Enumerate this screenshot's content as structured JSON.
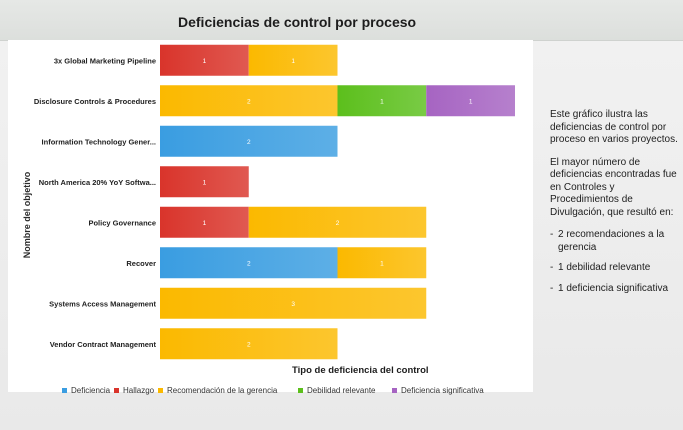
{
  "chart_data": {
    "type": "bar",
    "orientation": "horizontal",
    "stacked": true,
    "title": "Deficiencias de control por proceso",
    "xlabel": "Tipo de deficiencia del control",
    "ylabel": "Nombre del objetivo",
    "categories": [
      "3x Global Marketing Pipeline",
      "Disclosure Controls & Procedures",
      "Information Technology Gener...",
      "North America 20% YoY Softwa...",
      "Policy Governance",
      "Recover",
      "Systems Access Management",
      "Vendor Contract Management"
    ],
    "series": [
      {
        "name": "Deficiencia",
        "color": "#3a9de1",
        "values": [
          0,
          0,
          2,
          0,
          0,
          2,
          0,
          0
        ]
      },
      {
        "name": "Hallazgo",
        "color": "#d9342b",
        "values": [
          1,
          0,
          0,
          1,
          1,
          0,
          0,
          0
        ]
      },
      {
        "name": "Recomendación de la gerencia",
        "color": "#fbb900",
        "values": [
          1,
          2,
          0,
          0,
          2,
          1,
          3,
          2
        ]
      },
      {
        "name": "Debilidad relevante",
        "color": "#5cbf1c",
        "values": [
          0,
          1,
          0,
          0,
          0,
          0,
          0,
          0
        ]
      },
      {
        "name": "Deficiencia significativa",
        "color": "#a664c2",
        "values": [
          0,
          1,
          0,
          0,
          0,
          0,
          0,
          0
        ]
      }
    ],
    "xlim": [
      0,
      4
    ],
    "grid": false,
    "legend_position": "bottom"
  },
  "side_note": {
    "intro": "Este gráfico ilustra las deficiencias de control por proceso en varios proyectos.",
    "detail": "El mayor número de deficiencias encontradas fue en Controles y Procedimientos de Divulgación, que resultó en:",
    "bullets": [
      "2 recomendaciones a la gerencia",
      "1 debilidad relevante",
      "1 deficiencia significativa"
    ],
    "dash": "-"
  }
}
